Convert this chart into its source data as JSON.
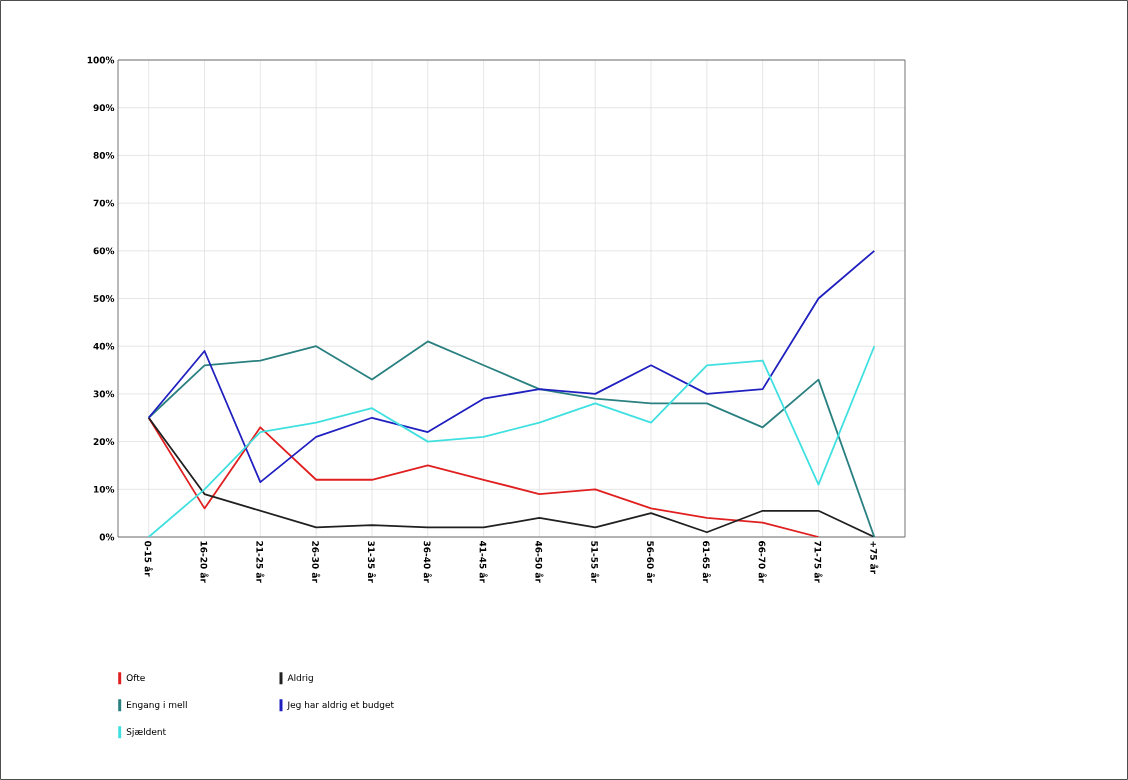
{
  "chart_data": {
    "type": "line",
    "categories": [
      "0-15 år",
      "16-20 år",
      "21-25 år",
      "26-30 år",
      "31-35 år",
      "36-40 år",
      "41-45 år",
      "46-50 år",
      "51-55 år",
      "56-60 år",
      "61-65 år",
      "66-70 år",
      "71-75 år",
      "+75 år"
    ],
    "series": [
      {
        "name": "Ofte",
        "color": "#e02020",
        "values": [
          25,
          6,
          23,
          12,
          12,
          15,
          12,
          9,
          10,
          6,
          4,
          3,
          0,
          null
        ]
      },
      {
        "name": "Aldrig",
        "color": "#202020",
        "values": [
          25,
          9,
          5.5,
          2,
          2.5,
          2,
          2,
          4,
          2,
          5,
          1,
          5.5,
          5.5,
          0
        ]
      },
      {
        "name": "Engang i mell",
        "color": "#2a8080",
        "values": [
          25,
          36,
          37,
          40,
          33,
          41,
          36,
          31,
          29,
          28,
          28,
          23,
          33,
          0
        ]
      },
      {
        "name": "Jeg har aldrig et budget",
        "color": "#2020c0",
        "values": [
          25,
          39,
          11.5,
          21,
          25,
          22,
          29,
          31,
          30,
          36,
          30,
          31,
          50,
          60
        ]
      },
      {
        "name": "Sjældent",
        "color": "#40e0e0",
        "values": [
          0,
          10,
          22,
          24,
          27,
          20,
          21,
          24,
          28,
          24,
          36,
          37,
          11,
          40
        ]
      }
    ],
    "ylim": [
      0,
      100
    ],
    "yticks": [
      {
        "value": 0,
        "label": "0%"
      },
      {
        "value": 10,
        "label": "10%"
      },
      {
        "value": 20,
        "label": "20%"
      },
      {
        "value": 30,
        "label": "30%"
      },
      {
        "value": 40,
        "label": "40%"
      },
      {
        "value": 50,
        "label": "50%"
      },
      {
        "value": 60,
        "label": "60%"
      },
      {
        "value": 70,
        "label": "70%"
      },
      {
        "value": 80,
        "label": "80%"
      },
      {
        "value": 90,
        "label": "90%"
      },
      {
        "value": 100,
        "label": "100%"
      }
    ],
    "grid": true,
    "legend": "bottom",
    "marker": "none",
    "line_style": "solid"
  }
}
